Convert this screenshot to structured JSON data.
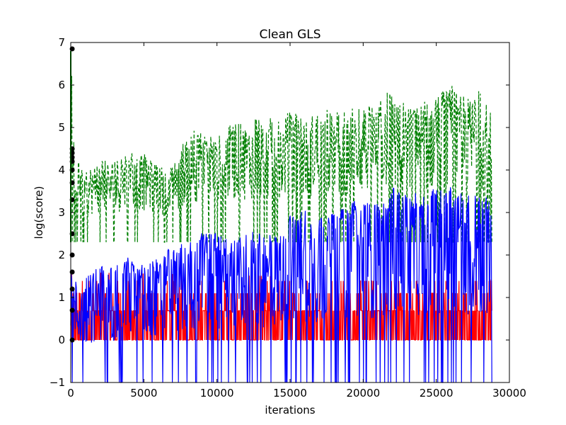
{
  "chart_data": {
    "type": "line",
    "title": "Clean GLS",
    "xlabel": "iterations",
    "ylabel": "log(score)",
    "xlim": [
      0,
      30000
    ],
    "ylim": [
      -1,
      7
    ],
    "x_ticks": [
      0,
      5000,
      10000,
      15000,
      20000,
      25000,
      30000
    ],
    "x_tick_labels": [
      "0",
      "5000",
      "10000",
      "15000",
      "20000",
      "25000",
      "30000"
    ],
    "y_ticks": [
      -1,
      0,
      1,
      2,
      3,
      4,
      5,
      6,
      7
    ],
    "y_tick_labels": [
      "−1",
      "0",
      "1",
      "2",
      "3",
      "4",
      "5",
      "6",
      "7"
    ],
    "grid": false,
    "legend": "none",
    "series": [
      {
        "color": "#008000",
        "style": "dashed",
        "x": [
          0,
          100,
          250,
          1000,
          2000,
          3000,
          4000,
          5000,
          6000,
          7000,
          8000,
          9000,
          10000,
          11000,
          12000,
          13000,
          14000,
          15000,
          16000,
          17000,
          18000,
          19000,
          20000,
          21000,
          22000,
          23000,
          24000,
          25000,
          26000,
          27000,
          28000,
          28800
        ],
        "min": [
          2.3,
          2.3,
          2.3,
          2.3,
          2.3,
          2.3,
          2.3,
          2.3,
          2.3,
          2.3,
          2.3,
          2.3,
          2.3,
          2.3,
          2.3,
          2.3,
          2.3,
          2.3,
          2.3,
          2.3,
          2.3,
          2.3,
          2.3,
          2.3,
          2.3,
          2.3,
          2.3,
          2.3,
          2.3,
          2.3,
          2.3,
          2.3
        ],
        "max": [
          6.8,
          6.5,
          4.3,
          4.1,
          4.2,
          4.3,
          4.4,
          4.4,
          4.1,
          4.1,
          5.0,
          4.9,
          4.8,
          5.1,
          5.1,
          5.3,
          5.2,
          5.4,
          5.2,
          5.5,
          5.4,
          5.5,
          5.5,
          5.6,
          6.0,
          5.5,
          5.7,
          5.8,
          6.0,
          5.7,
          5.9,
          5.6
        ]
      },
      {
        "color": "#0000ff",
        "style": "solid",
        "x": [
          0,
          500,
          1000,
          2000,
          3000,
          4000,
          5000,
          6000,
          7000,
          8000,
          9000,
          10000,
          11000,
          12000,
          13000,
          14000,
          15000,
          16000,
          17000,
          18000,
          19000,
          20000,
          21000,
          22000,
          23000,
          24000,
          25000,
          26000,
          27000,
          28000,
          28800
        ],
        "min": [
          -1,
          -1,
          -1,
          -1,
          -1,
          -1,
          -1,
          -1,
          -1,
          -1,
          -1,
          -1,
          -1,
          -1,
          -1,
          -1,
          -1,
          -1,
          -1,
          -1,
          -1,
          -1,
          -1,
          -1,
          -1,
          -1,
          -1,
          -1,
          -1,
          -1,
          -1
        ],
        "max": [
          1.6,
          1.4,
          1.5,
          1.8,
          1.8,
          2.0,
          1.8,
          2.0,
          2.2,
          2.3,
          2.6,
          2.5,
          2.3,
          2.6,
          2.5,
          2.6,
          3.0,
          3.1,
          2.9,
          3.0,
          3.2,
          3.4,
          3.2,
          3.6,
          3.4,
          3.5,
          3.6,
          3.6,
          3.4,
          3.5,
          3.3
        ]
      },
      {
        "color": "#ff0000",
        "style": "solid",
        "x": [
          0,
          28800
        ],
        "min": [
          0,
          0
        ],
        "max": [
          1.6,
          1.4
        ]
      },
      {
        "color": "#000000",
        "style": "markers",
        "x": [
          100,
          100,
          100,
          100,
          100,
          100,
          100,
          100,
          100,
          100,
          100,
          100,
          100,
          100
        ],
        "y": [
          6.85,
          4.5,
          4.4,
          4.3,
          4.2,
          4.0,
          3.7,
          3.3,
          2.5,
          2.0,
          1.6,
          1.2,
          0.7,
          0.0
        ]
      }
    ]
  }
}
